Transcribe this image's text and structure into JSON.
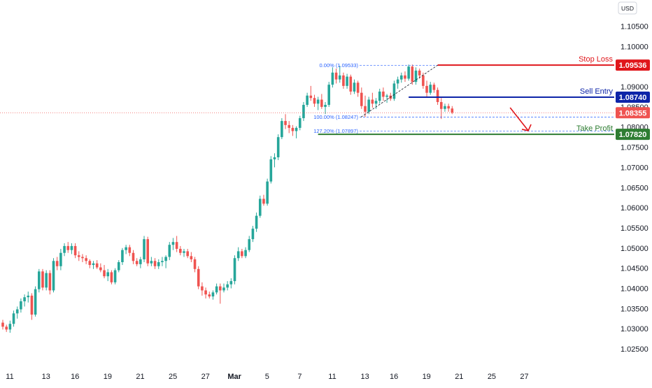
{
  "chart_data": {
    "type": "candlestick",
    "currency_label": "USD",
    "y_ticks": [
      1.105,
      1.1,
      1.095,
      1.09,
      1.085,
      1.08,
      1.075,
      1.07,
      1.065,
      1.06,
      1.055,
      1.05,
      1.045,
      1.04,
      1.035,
      1.03,
      1.025
    ],
    "y_tick_labels": [
      "1.10500",
      "1.10000",
      "",
      "1.09000",
      "1.08500",
      "1.08000",
      "1.07500",
      "1.07000",
      "1.06500",
      "1.06000",
      "1.05500",
      "1.05000",
      "1.04500",
      "1.04000",
      "1.03500",
      "1.03000",
      "1.02500"
    ],
    "ylim": [
      1.0205,
      1.1115
    ],
    "x_labels": [
      {
        "text": "11",
        "bar": 0
      },
      {
        "text": "13",
        "bar": 10
      },
      {
        "text": "16",
        "bar": 18
      },
      {
        "text": "19",
        "bar": 27
      },
      {
        "text": "21",
        "bar": 36
      },
      {
        "text": "25",
        "bar": 45
      },
      {
        "text": "27",
        "bar": 54
      },
      {
        "text": "Mar",
        "bar": 62,
        "bold": true
      },
      {
        "text": "5",
        "bar": 71
      },
      {
        "text": "7",
        "bar": 80
      },
      {
        "text": "11",
        "bar": 89
      },
      {
        "text": "13",
        "bar": 98
      },
      {
        "text": "16",
        "bar": 106
      },
      {
        "text": "19",
        "bar": 115
      },
      {
        "text": "21",
        "bar": 124
      },
      {
        "text": "25",
        "bar": 133
      },
      {
        "text": "27",
        "bar": 142
      }
    ],
    "ohlc": [
      [
        1.0315,
        1.0322,
        1.0298,
        1.0305
      ],
      [
        1.0305,
        1.031,
        1.0292,
        1.0298
      ],
      [
        1.0298,
        1.032,
        1.029,
        1.0312
      ],
      [
        1.0312,
        1.0345,
        1.0305,
        1.0338
      ],
      [
        1.0338,
        1.0355,
        1.0325,
        1.0348
      ],
      [
        1.0348,
        1.0375,
        1.034,
        1.0368
      ],
      [
        1.0368,
        1.0385,
        1.0355,
        1.0378
      ],
      [
        1.0378,
        1.0392,
        1.0365,
        1.0382
      ],
      [
        1.0382,
        1.0388,
        1.0322,
        1.0335
      ],
      [
        1.0335,
        1.0405,
        1.033,
        1.0398
      ],
      [
        1.0398,
        1.0448,
        1.039,
        1.0442
      ],
      [
        1.0442,
        1.0448,
        1.0395,
        1.0402
      ],
      [
        1.0402,
        1.0445,
        1.0395,
        1.0438
      ],
      [
        1.0438,
        1.0445,
        1.0385,
        1.0395
      ],
      [
        1.0395,
        1.0475,
        1.039,
        1.0468
      ],
      [
        1.0468,
        1.0478,
        1.0445,
        1.0455
      ],
      [
        1.0455,
        1.0498,
        1.0445,
        1.0488
      ],
      [
        1.0488,
        1.0512,
        1.048,
        1.0505
      ],
      [
        1.0505,
        1.0515,
        1.0488,
        1.0495
      ],
      [
        1.0495,
        1.0512,
        1.0485,
        1.0505
      ],
      [
        1.0505,
        1.0512,
        1.0475,
        1.0482
      ],
      [
        1.0482,
        1.0492,
        1.0468,
        1.0478
      ],
      [
        1.0478,
        1.0485,
        1.0465,
        1.0475
      ],
      [
        1.0475,
        1.0482,
        1.046,
        1.0468
      ],
      [
        1.0468,
        1.0472,
        1.045,
        1.0458
      ],
      [
        1.0458,
        1.0468,
        1.0448,
        1.0462
      ],
      [
        1.0462,
        1.047,
        1.0448,
        1.0452
      ],
      [
        1.0452,
        1.0462,
        1.044,
        1.0445
      ],
      [
        1.0445,
        1.0458,
        1.0425,
        1.043
      ],
      [
        1.043,
        1.0448,
        1.0418,
        1.044
      ],
      [
        1.044,
        1.0445,
        1.041,
        1.0415
      ],
      [
        1.0415,
        1.045,
        1.041,
        1.0445
      ],
      [
        1.0445,
        1.047,
        1.044,
        1.0465
      ],
      [
        1.0465,
        1.05,
        1.0458,
        1.0495
      ],
      [
        1.0495,
        1.0508,
        1.0485,
        1.0502
      ],
      [
        1.0502,
        1.0508,
        1.048,
        1.0488
      ],
      [
        1.0488,
        1.0495,
        1.046,
        1.0468
      ],
      [
        1.0468,
        1.0475,
        1.0455,
        1.046
      ],
      [
        1.046,
        1.0478,
        1.045,
        1.0472
      ],
      [
        1.0472,
        1.053,
        1.0465,
        1.0522
      ],
      [
        1.0522,
        1.0528,
        1.0455,
        1.0462
      ],
      [
        1.0462,
        1.0478,
        1.0455,
        1.0468
      ],
      [
        1.0468,
        1.0475,
        1.0448,
        1.0455
      ],
      [
        1.0455,
        1.0472,
        1.0448,
        1.0465
      ],
      [
        1.0465,
        1.0478,
        1.0455,
        1.0468
      ],
      [
        1.0468,
        1.0482,
        1.045,
        1.0478
      ],
      [
        1.0478,
        1.0515,
        1.047,
        1.0508
      ],
      [
        1.0508,
        1.0525,
        1.0495,
        1.0515
      ],
      [
        1.0515,
        1.053,
        1.049,
        1.0498
      ],
      [
        1.0498,
        1.0505,
        1.0482,
        1.0488
      ],
      [
        1.0488,
        1.0498,
        1.0478,
        1.0492
      ],
      [
        1.0492,
        1.0498,
        1.0475,
        1.048
      ],
      [
        1.048,
        1.049,
        1.0465,
        1.0472
      ],
      [
        1.0472,
        1.0478,
        1.044,
        1.0448
      ],
      [
        1.0448,
        1.0455,
        1.0398,
        1.0405
      ],
      [
        1.0405,
        1.0415,
        1.0382,
        1.0395
      ],
      [
        1.0395,
        1.0402,
        1.0375,
        1.0385
      ],
      [
        1.0385,
        1.0392,
        1.0375,
        1.038
      ],
      [
        1.038,
        1.0395,
        1.0372,
        1.039
      ],
      [
        1.039,
        1.0412,
        1.0385,
        1.0405
      ],
      [
        1.0405,
        1.0412,
        1.0362,
        1.0395
      ],
      [
        1.0395,
        1.0412,
        1.039,
        1.0402
      ],
      [
        1.0402,
        1.0418,
        1.0395,
        1.041
      ],
      [
        1.041,
        1.0425,
        1.04,
        1.0418
      ],
      [
        1.0418,
        1.0482,
        1.041,
        1.0475
      ],
      [
        1.0475,
        1.0502,
        1.0468,
        1.0492
      ],
      [
        1.0492,
        1.0498,
        1.0475,
        1.048
      ],
      [
        1.048,
        1.0502,
        1.0475,
        1.0495
      ],
      [
        1.0495,
        1.053,
        1.049,
        1.0522
      ],
      [
        1.0522,
        1.0555,
        1.0515,
        1.0548
      ],
      [
        1.0548,
        1.0588,
        1.054,
        1.058
      ],
      [
        1.058,
        1.063,
        1.0575,
        1.0622
      ],
      [
        1.0622,
        1.0632,
        1.0605,
        1.061
      ],
      [
        1.061,
        1.0672,
        1.0605,
        1.0665
      ],
      [
        1.0665,
        1.0728,
        1.066,
        1.072
      ],
      [
        1.072,
        1.0735,
        1.07,
        1.0725
      ],
      [
        1.0725,
        1.0782,
        1.0718,
        1.0775
      ],
      [
        1.0775,
        1.0822,
        1.077,
        1.0815
      ],
      [
        1.0815,
        1.0832,
        1.0795,
        1.0805
      ],
      [
        1.0805,
        1.0815,
        1.0785,
        1.0798
      ],
      [
        1.0798,
        1.0805,
        1.0778,
        1.079
      ],
      [
        1.079,
        1.0802,
        1.0772,
        1.0798
      ],
      [
        1.0798,
        1.0828,
        1.0792,
        1.0822
      ],
      [
        1.0822,
        1.0862,
        1.0815,
        1.0855
      ],
      [
        1.0855,
        1.0885,
        1.085,
        1.0878
      ],
      [
        1.0878,
        1.0902,
        1.0865,
        1.0872
      ],
      [
        1.0872,
        1.088,
        1.085,
        1.0858
      ],
      [
        1.0858,
        1.0875,
        1.0842,
        1.0868
      ],
      [
        1.0868,
        1.0882,
        1.0845,
        1.085
      ],
      [
        1.085,
        1.0862,
        1.0832,
        1.0855
      ],
      [
        1.0855,
        1.0912,
        1.085,
        1.0905
      ],
      [
        1.0905,
        1.0948,
        1.0898,
        1.0935
      ],
      [
        1.0935,
        1.0945,
        1.0908,
        1.0918
      ],
      [
        1.0918,
        1.0952,
        1.091,
        1.0928
      ],
      [
        1.0928,
        1.0935,
        1.0895,
        1.0902
      ],
      [
        1.0902,
        1.0932,
        1.0895,
        1.0925
      ],
      [
        1.0925,
        1.093,
        1.088,
        1.0888
      ],
      [
        1.0888,
        1.0918,
        1.0882,
        1.091
      ],
      [
        1.091,
        1.0915,
        1.0875,
        1.0885
      ],
      [
        1.0885,
        1.0898,
        1.0845,
        1.0852
      ],
      [
        1.0852,
        1.0878,
        1.0825,
        1.0838
      ],
      [
        1.0838,
        1.0875,
        1.0832,
        1.0868
      ],
      [
        1.0868,
        1.0885,
        1.0848,
        1.0858
      ],
      [
        1.0858,
        1.0872,
        1.0845,
        1.0865
      ],
      [
        1.0865,
        1.0895,
        1.0858,
        1.0888
      ],
      [
        1.0888,
        1.0898,
        1.0865,
        1.0875
      ],
      [
        1.0875,
        1.0882,
        1.086,
        1.0878
      ],
      [
        1.0878,
        1.0885,
        1.0865,
        1.087
      ],
      [
        1.087,
        1.0915,
        1.0865,
        1.0908
      ],
      [
        1.0908,
        1.0925,
        1.0895,
        1.0918
      ],
      [
        1.0918,
        1.0935,
        1.091,
        1.0928
      ],
      [
        1.0928,
        1.0938,
        1.0912,
        1.092
      ],
      [
        1.092,
        1.0955,
        1.0915,
        1.095
      ],
      [
        1.095,
        1.0955,
        1.0905,
        1.0912
      ],
      [
        1.0912,
        1.0948,
        1.0905,
        1.094
      ],
      [
        1.094,
        1.0945,
        1.092,
        1.0928
      ],
      [
        1.0928,
        1.0935,
        1.0895,
        1.0902
      ],
      [
        1.0902,
        1.0915,
        1.0875,
        1.0885
      ],
      [
        1.0885,
        1.0912,
        1.088,
        1.0905
      ],
      [
        1.0905,
        1.091,
        1.0885,
        1.0892
      ],
      [
        1.0892,
        1.0898,
        1.0855,
        1.0862
      ],
      [
        1.0862,
        1.0872,
        1.082,
        1.0845
      ],
      [
        1.0845,
        1.0858,
        1.0838,
        1.0852
      ],
      [
        1.0852,
        1.0858,
        1.0838,
        1.0846
      ],
      [
        1.0846,
        1.0852,
        1.0832,
        1.0836
      ]
    ],
    "levels": {
      "stop_loss": {
        "label": "Stop Loss",
        "value": 1.09536,
        "value_label": "1.09536",
        "color": "#e0161b"
      },
      "sell_entry": {
        "label": "Sell Entry",
        "value": 1.0874,
        "value_label": "1.08740",
        "color": "#0d24a8"
      },
      "take_profit": {
        "label": "Take Profit",
        "value": 1.0782,
        "value_label": "1.07820",
        "color": "#2e7d32"
      },
      "current_price": {
        "value": 1.08355,
        "value_label": "1.08355",
        "color": "#ef5350"
      }
    },
    "fib": [
      {
        "label": "0.00% (1.09533)",
        "value": 1.09533
      },
      {
        "label": "100.00% (1.08247)",
        "value": 1.08247
      },
      {
        "label": "127.20% (1.07897)",
        "value": 1.07897
      }
    ],
    "colors": {
      "up": "#26a69a",
      "down": "#ef5350",
      "fib": "#2962ff",
      "arrow": "#e0161b"
    }
  }
}
